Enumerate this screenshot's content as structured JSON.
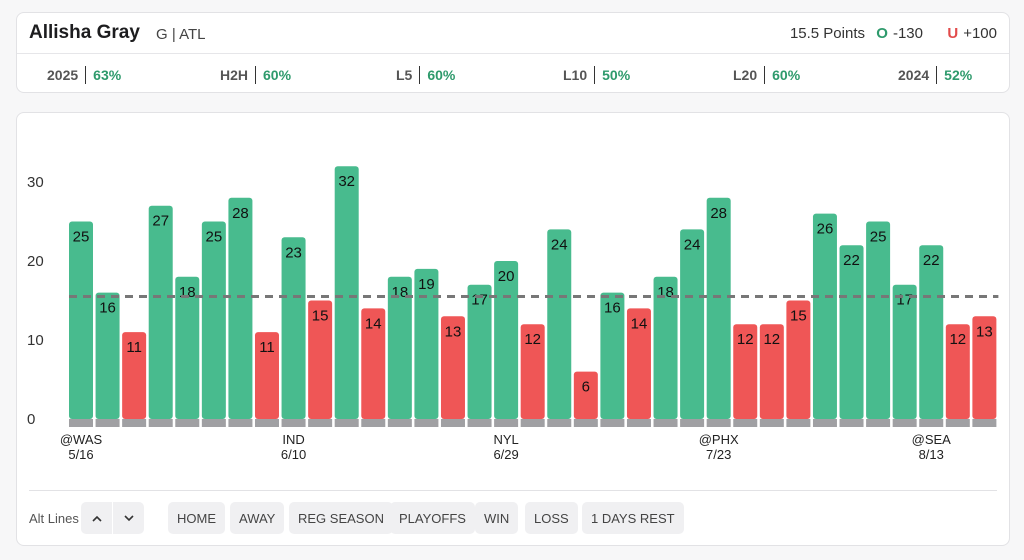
{
  "header": {
    "player_name": "Allisha Gray",
    "player_meta": "G | ATL",
    "line_label": "15.5 Points",
    "over": {
      "letter": "O",
      "odds": "-130",
      "color": "#2e9a6c"
    },
    "under": {
      "letter": "U",
      "odds": "+100",
      "color": "#e24b4b"
    }
  },
  "hit_rates": [
    {
      "label": "2025",
      "value": "63%"
    },
    {
      "label": "H2H",
      "value": "60%"
    },
    {
      "label": "L5",
      "value": "60%"
    },
    {
      "label": "L10",
      "value": "50%"
    },
    {
      "label": "L20",
      "value": "60%"
    },
    {
      "label": "2024",
      "value": "52%"
    }
  ],
  "filters": {
    "alt_lines_label": "Alt Lines",
    "up_icon": "chevron-up-icon",
    "down_icon": "chevron-down-icon",
    "buttons": [
      "HOME",
      "AWAY",
      "REG SEASON",
      "PLAYOFFS",
      "WIN",
      "LOSS",
      "1 DAYS REST"
    ]
  },
  "colors": {
    "over": "#48bb8e",
    "under": "#ef5656",
    "baseline": "#a0a0a3",
    "line": "#777777"
  },
  "chart_data": {
    "type": "bar",
    "title": "",
    "values": [
      25,
      16,
      11,
      27,
      18,
      25,
      28,
      11,
      23,
      15,
      32,
      14,
      18,
      19,
      13,
      17,
      20,
      12,
      24,
      6,
      16,
      14,
      18,
      24,
      28,
      12,
      12,
      15,
      26,
      22,
      25,
      17,
      22,
      12,
      13
    ],
    "line": 15.5,
    "ylim": [
      0,
      35
    ],
    "yticks": [
      0,
      10,
      20,
      30
    ],
    "x_labels": [
      {
        "index": 0,
        "opponent": "@WAS",
        "date": "5/16"
      },
      {
        "index": 8,
        "opponent": "IND",
        "date": "6/10"
      },
      {
        "index": 16,
        "opponent": "NYL",
        "date": "6/29"
      },
      {
        "index": 24,
        "opponent": "@PHX",
        "date": "7/23"
      },
      {
        "index": 32,
        "opponent": "@SEA",
        "date": "8/13"
      }
    ],
    "grid": false,
    "legend": "none"
  }
}
